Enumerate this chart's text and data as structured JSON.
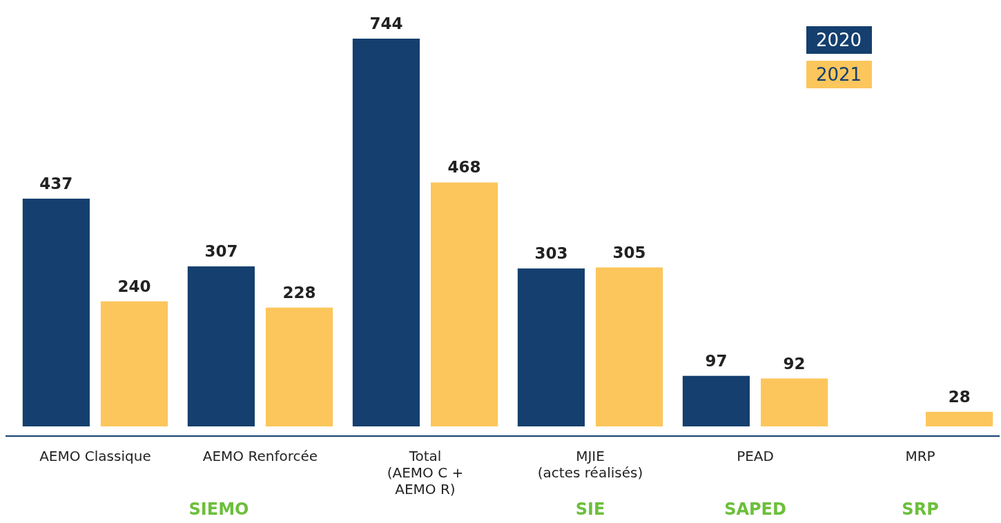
{
  "chart_data": {
    "type": "bar",
    "categories": [
      "AEMO Classique",
      "AEMO Renforcée",
      "Total\n(AEMO C +\nAEMO R)",
      "MJIE\n(actes réalisés)",
      "PEAD",
      "MRP"
    ],
    "series": [
      {
        "name": "2020",
        "color": "#143f6e",
        "values": [
          437,
          307,
          744,
          303,
          97,
          null
        ]
      },
      {
        "name": "2021",
        "color": "#fcc65c",
        "values": [
          240,
          228,
          468,
          305,
          92,
          28
        ]
      }
    ],
    "data_labels": true,
    "legend": "top right",
    "annotations": [
      "SIEMO",
      "SIE",
      "SAPED",
      "SRP"
    ]
  }
}
